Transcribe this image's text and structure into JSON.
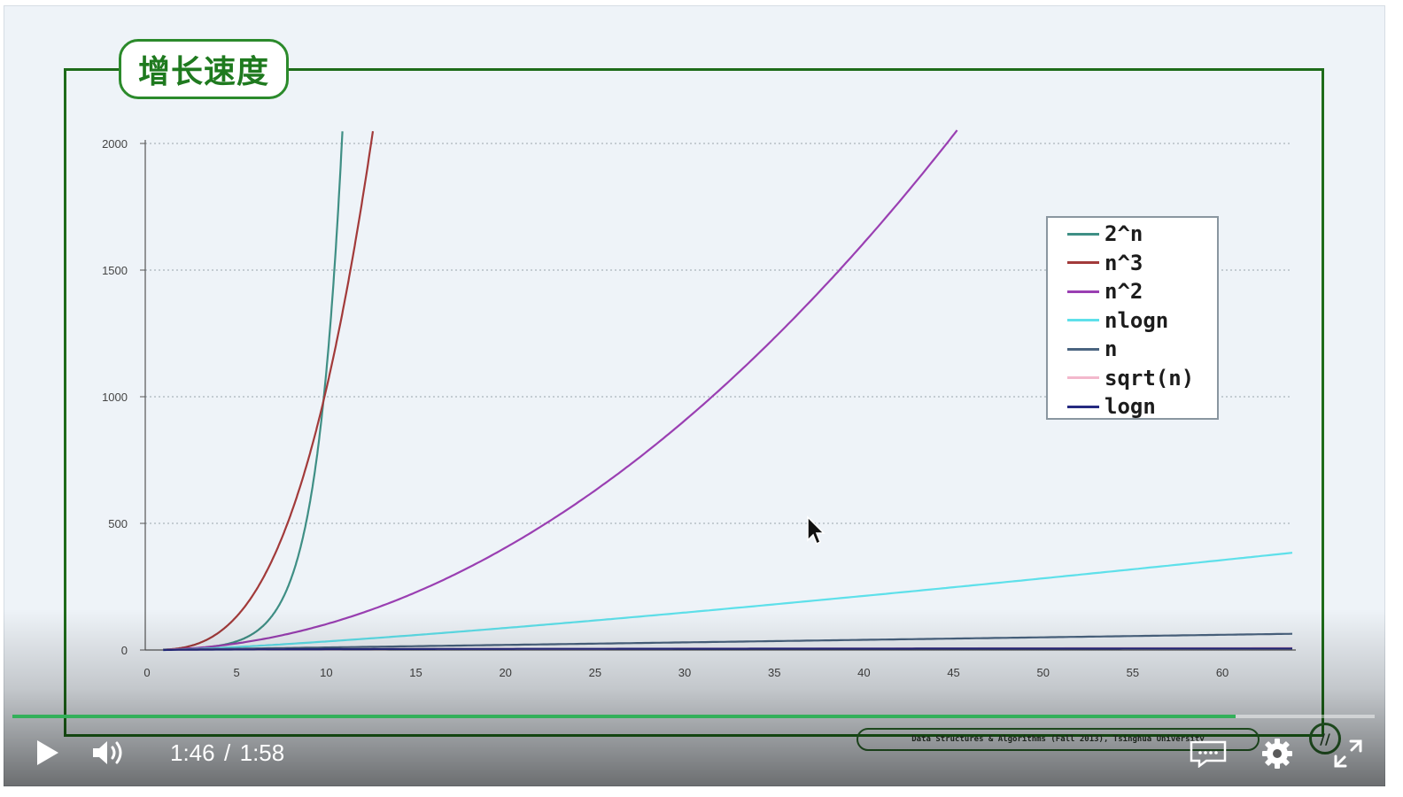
{
  "slide": {
    "title": "增长速度",
    "watermark": "Data Structures & Algorithms (Fall 2013), Tsinghua University",
    "logo_text": "//"
  },
  "chart_data": {
    "type": "line",
    "title": "",
    "xlabel": "",
    "ylabel": "",
    "xlim": [
      0,
      64
    ],
    "ylim": [
      0,
      2000
    ],
    "x_ticks": [
      0,
      5,
      10,
      15,
      20,
      25,
      30,
      35,
      40,
      45,
      50,
      55,
      60
    ],
    "y_ticks": [
      0,
      500,
      1000,
      1500,
      2000
    ],
    "grid": "horizontal dotted",
    "legend_position": "right",
    "series": [
      {
        "name": "2^n",
        "color": "#3f8f85",
        "function": "2^n",
        "x_range": [
          1,
          11
        ]
      },
      {
        "name": "n^3",
        "color": "#a23a3a",
        "function": "n^3",
        "x_range": [
          1,
          12.7
        ]
      },
      {
        "name": "n^2",
        "color": "#9a3fb2",
        "function": "n^2",
        "x_range": [
          1,
          45.3
        ]
      },
      {
        "name": "nlogn",
        "color": "#5ee0ea",
        "function": "nlogn",
        "x_range": [
          1,
          64
        ]
      },
      {
        "name": "n",
        "color": "#4a6480",
        "function": "n",
        "x_range": [
          1,
          64
        ]
      },
      {
        "name": "sqrt(n)",
        "color": "#f3b8cc",
        "function": "sqrt(n)",
        "x_range": [
          1,
          64
        ]
      },
      {
        "name": "logn",
        "color": "#252a80",
        "function": "logn",
        "x_range": [
          1,
          64
        ]
      }
    ]
  },
  "player": {
    "current_time": "1:46",
    "separator": "/",
    "duration": "1:58",
    "progress": 0.898,
    "accent_color": "#33b05a",
    "icons": {
      "play": "play-icon",
      "volume": "volume-icon",
      "captions": "captions-icon",
      "settings": "gear-icon",
      "fullscreen": "fullscreen-icon"
    }
  }
}
